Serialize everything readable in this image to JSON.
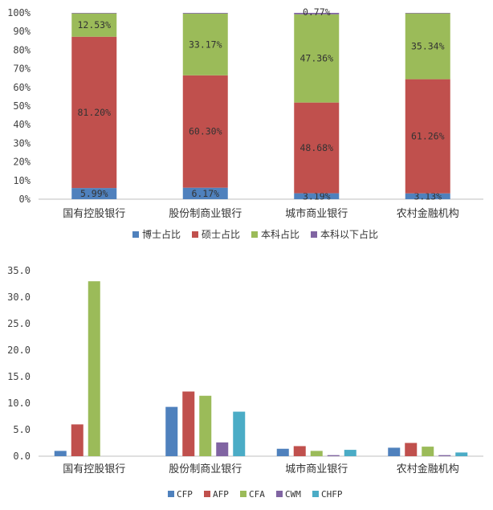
{
  "chart_data": [
    {
      "type": "bar",
      "stacked": true,
      "percent_stacked": true,
      "categories": [
        "国有控股银行",
        "股份制商业银行",
        "城市商业银行",
        "农村金融机构"
      ],
      "yticks": [
        "0%",
        "10%",
        "20%",
        "30%",
        "40%",
        "50%",
        "60%",
        "70%",
        "80%",
        "90%",
        "100%"
      ],
      "ylim": [
        0,
        100
      ],
      "series": [
        {
          "name": "博士占比",
          "color": "#4f81bd",
          "values": [
            5.99,
            6.17,
            3.19,
            3.13
          ],
          "labels": [
            "5.99%",
            "6.17%",
            "3.19%",
            "3.13%"
          ]
        },
        {
          "name": "硕士占比",
          "color": "#c0504d",
          "values": [
            81.2,
            60.3,
            48.68,
            61.26
          ],
          "labels": [
            "81.20%",
            "60.30%",
            "48.68%",
            "61.26%"
          ]
        },
        {
          "name": "本科占比",
          "color": "#9bbb59",
          "values": [
            12.53,
            33.17,
            47.36,
            35.34
          ],
          "labels": [
            "12.53%",
            "33.17%",
            "47.36%",
            "35.34%"
          ]
        },
        {
          "name": "本科以下占比",
          "color": "#8064a2",
          "values": [
            0.28,
            0.36,
            0.77,
            0.27
          ],
          "labels": [
            "",
            "",
            "0.77%",
            ""
          ]
        }
      ],
      "legend_position": "bottom"
    },
    {
      "type": "bar",
      "categories": [
        "国有控股银行",
        "股份制商业银行",
        "城市商业银行",
        "农村金融机构"
      ],
      "yticks": [
        "0.0",
        "5.0",
        "10.0",
        "15.0",
        "20.0",
        "25.0",
        "30.0",
        "35.0"
      ],
      "ylim": [
        0,
        35
      ],
      "series": [
        {
          "name": "CFP",
          "color": "#4f81bd",
          "values": [
            1.0,
            9.3,
            1.4,
            1.6
          ]
        },
        {
          "name": "AFP",
          "color": "#c0504d",
          "values": [
            6.0,
            12.2,
            1.9,
            2.5
          ]
        },
        {
          "name": "CFA",
          "color": "#9bbb59",
          "values": [
            33.0,
            11.4,
            1.0,
            1.8
          ]
        },
        {
          "name": "CWM",
          "color": "#8064a2",
          "values": [
            0.0,
            2.6,
            0.2,
            0.2
          ]
        },
        {
          "name": "CHFP",
          "color": "#4bacc6",
          "values": [
            0.0,
            8.4,
            1.2,
            0.7
          ]
        }
      ],
      "legend_position": "bottom"
    }
  ]
}
